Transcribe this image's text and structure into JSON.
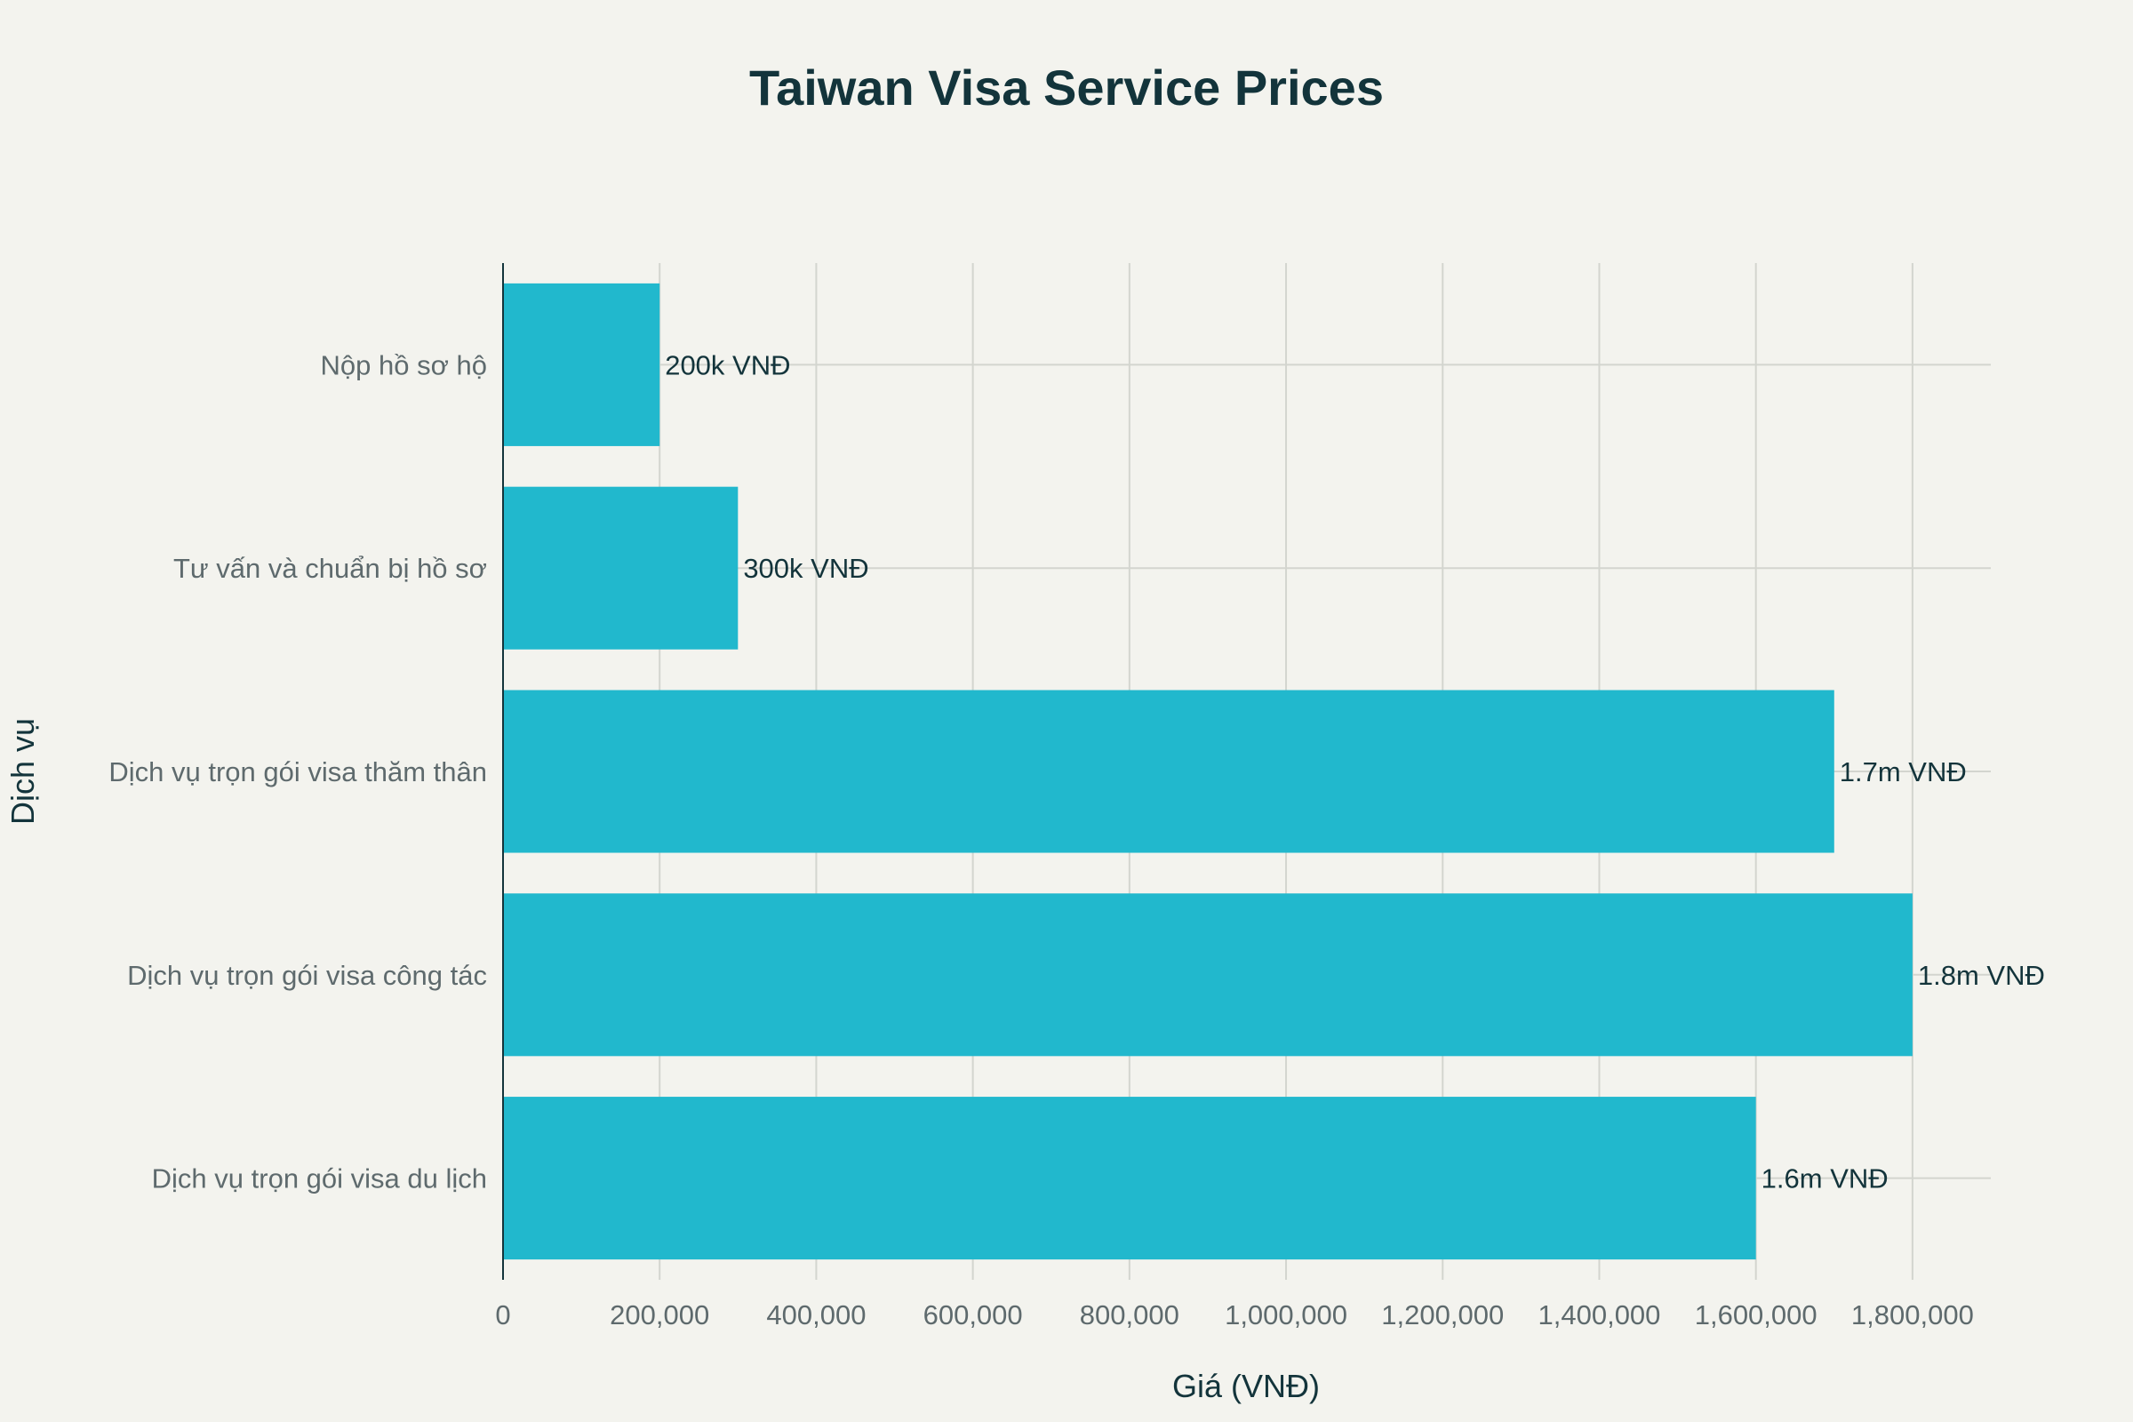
{
  "chart_data": {
    "type": "bar",
    "orientation": "horizontal",
    "title": "Taiwan Visa Service Prices",
    "xlabel": "Giá (VNĐ)",
    "ylabel": "Dịch vụ",
    "xlim": [
      0,
      1900000
    ],
    "xticks": [
      0,
      200000,
      400000,
      600000,
      800000,
      1000000,
      1200000,
      1400000,
      1600000,
      1800000
    ],
    "xtick_labels": [
      "0",
      "200,000",
      "400,000",
      "600,000",
      "800,000",
      "1,000,000",
      "1,200,000",
      "1,400,000",
      "1,600,000",
      "1,800,000"
    ],
    "categories": [
      "Nộp hồ sơ hộ",
      "Tư vấn và chuẩn bị hồ sơ",
      "Dịch vụ trọn gói visa thăm thân",
      "Dịch vụ trọn gói visa công tác",
      "Dịch vụ trọn gói visa du lịch"
    ],
    "values": [
      200000,
      300000,
      1700000,
      1800000,
      1600000
    ],
    "data_labels": [
      "200k VNĐ",
      "300k VNĐ",
      "1.7m VNĐ",
      "1.8m VNĐ",
      "1.6m VNĐ"
    ],
    "bar_color": "#21b8cd",
    "grid": true,
    "legend": "none"
  }
}
